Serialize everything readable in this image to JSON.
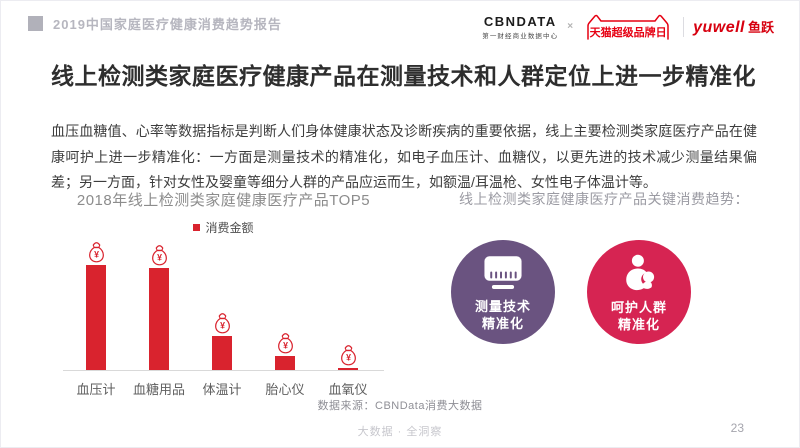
{
  "header": {
    "report_title": "2019中国家庭医疗健康消费趋势报告",
    "logos": {
      "cbndata": "CBNDATA",
      "cbndata_sub": "第一财经商业数据中心",
      "cross": "×",
      "tmall": "天猫超级品牌日",
      "yuwell_en": "yuwell",
      "yuwell_cn": "鱼跃"
    }
  },
  "title": "线上检测类家庭医疗健康产品在测量技术和人群定位上进一步精准化",
  "body": "血压血糖值、心率等数据指标是判断人们身体健康状态及诊断疾病的重要依据，线上主要检测类家庭医疗产品在健康呵护上进一步精准化：一方面是测量技术的精准化，如电子血压计、血糖仪，以更先进的技术减少测量结果偏差；另一方面，针对女性及婴童等细分人群的产品应运而生，如额温/耳温枪、女性电子体温计等。",
  "chart": {
    "title": "2018年线上检测类家庭健康医疗产品TOP5",
    "legend_label": "消费金额"
  },
  "chart_data": {
    "type": "bar",
    "title": "2018年线上检测类家庭健康医疗产品TOP5",
    "legend": [
      "消费金额"
    ],
    "legend_position": "top-center",
    "categories": [
      "血压计",
      "血糖用品",
      "体温计",
      "胎心仪",
      "血氧仪"
    ],
    "values": [
      100,
      97,
      32,
      13,
      2
    ],
    "value_axis_visible": false,
    "grid": false,
    "value_marker": "¥",
    "note_icon_above_each_bar": "money-bag-icon"
  },
  "trends": {
    "title": "线上检测类家庭健康医疗产品关键消费趋势：",
    "items": [
      {
        "line1": "测量技术",
        "line2": "精准化",
        "icon": "blood-pressure-monitor-icon",
        "color": "#6a5380"
      },
      {
        "line1": "呵护人群",
        "line2": "精准化",
        "icon": "mother-baby-icon",
        "color": "#d62452"
      }
    ]
  },
  "source": "数据来源：CBNData消费大数据",
  "footer": {
    "slogan": "大数据 · 全洞察",
    "page": "23"
  },
  "colors": {
    "bar_red": "#d9232e",
    "circle_purple": "#6a5380",
    "circle_red": "#d62452",
    "logo_red": "#d7000f",
    "tmall_red": "#e60012"
  },
  "icons": {
    "header_bullet": "square-bullet-icon",
    "tmall_cat": "tmall-cat-icon",
    "money_bag": "money-bag-icon",
    "measurement": "blood-pressure-monitor-icon",
    "care": "mother-baby-icon"
  }
}
